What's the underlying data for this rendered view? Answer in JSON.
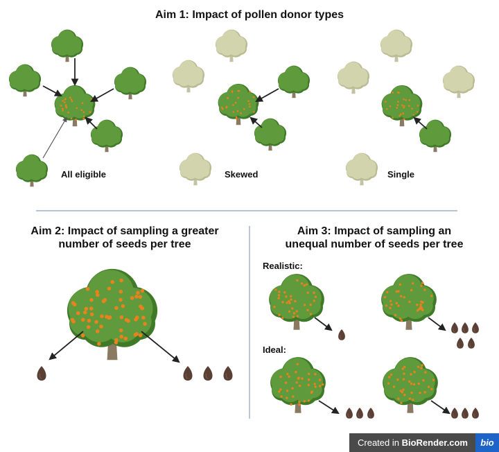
{
  "aim1": {
    "title": "Aim 1: Impact of pollen donor types",
    "labels": [
      "All eligible",
      "Skewed",
      "Single"
    ]
  },
  "aim2": {
    "title_line1": "Aim 2: Impact of sampling a greater",
    "title_line2": "number of seeds per tree"
  },
  "aim3": {
    "title_line1": "Aim 3: Impact of sampling an",
    "title_line2": "unequal number of seeds per tree",
    "realistic_label": "Realistic:",
    "ideal_label": "Ideal:"
  },
  "badge": {
    "prefix": "Created in ",
    "brand": "BioRender.com",
    "logo": "bio"
  },
  "colors": {
    "leaf": "#5f9a3c",
    "leaf_dark": "#3f7a28",
    "leaf_faded": "#d2d4ad",
    "trunk": "#8a7a62",
    "fruit": "#e8821e",
    "seed": "#5a3f34",
    "divider": "#8ea0c4"
  }
}
